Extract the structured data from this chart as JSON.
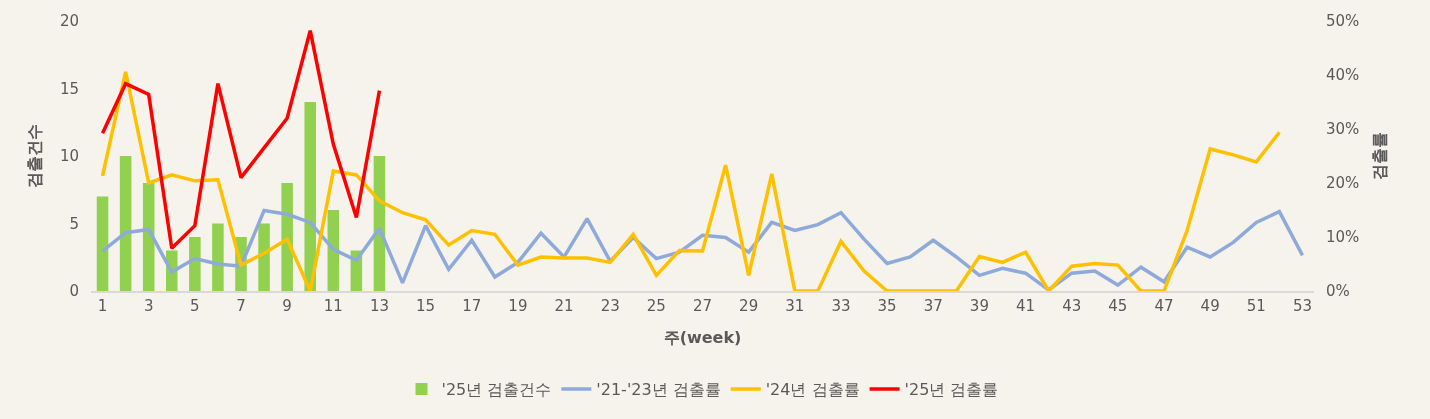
{
  "chart_data": {
    "type": "bar",
    "xlabel": "주(week)",
    "ylabel": "검출건수",
    "y2label": "검출률",
    "x": [
      1,
      2,
      3,
      4,
      5,
      6,
      7,
      8,
      9,
      10,
      11,
      12,
      13,
      14,
      15,
      16,
      17,
      18,
      19,
      20,
      21,
      22,
      23,
      24,
      25,
      26,
      27,
      28,
      29,
      30,
      31,
      32,
      33,
      34,
      35,
      36,
      37,
      38,
      39,
      40,
      41,
      42,
      43,
      44,
      45,
      46,
      47,
      48,
      49,
      50,
      51,
      52,
      53
    ],
    "xlim": [
      0.5,
      53.5
    ],
    "xticks": [
      1,
      3,
      5,
      7,
      9,
      11,
      13,
      15,
      17,
      19,
      21,
      23,
      25,
      27,
      29,
      31,
      33,
      35,
      37,
      39,
      41,
      43,
      45,
      47,
      49,
      51,
      53
    ],
    "ylim": [
      0,
      20
    ],
    "yticks": [
      0,
      5,
      10,
      15,
      20
    ],
    "y2lim": [
      0,
      50
    ],
    "y2ticks": [
      {
        "value": 0,
        "label": "0%"
      },
      {
        "value": 10,
        "label": "10%"
      },
      {
        "value": 20,
        "label": "20%"
      },
      {
        "value": 30,
        "label": "30%"
      },
      {
        "value": 40,
        "label": "40%"
      },
      {
        "value": 50,
        "label": "50%"
      }
    ],
    "grid": false,
    "legend": "bottom",
    "series": [
      {
        "name": "'25년 검출건수",
        "color": "#92d050",
        "x": [
          1,
          2,
          3,
          4,
          5,
          6,
          7,
          8,
          9,
          10,
          11,
          12,
          13
        ],
        "values": [
          7,
          10,
          8,
          3,
          4,
          5,
          4,
          5,
          8,
          14,
          6,
          3,
          10
        ]
      },
      {
        "name": "'21-'23년 검출률",
        "type": "line",
        "axis": "y2",
        "color": "#8eaadb",
        "values": [
          7.4,
          10.8,
          11.4,
          3.5,
          6,
          5,
          4.6,
          14.9,
          14.2,
          12.7,
          7.7,
          5.7,
          11.6,
          1.5,
          12.1,
          4,
          9.4,
          2.6,
          5.3,
          10.7,
          6.3,
          13.4,
          5.5,
          9.9,
          6,
          7.2,
          10.3,
          9.9,
          7.2,
          12.7,
          11.2,
          12.3,
          14.5,
          9.6,
          5.1,
          6.3,
          9.4,
          6.3,
          2.9,
          4.2,
          3.3,
          0.2,
          3.3,
          3.7,
          1.1,
          4.4,
          1.7,
          8.1,
          6.3,
          9,
          12.7,
          14.7,
          6.6
        ]
      },
      {
        "name": "'24년 검출률",
        "type": "line",
        "axis": "y2",
        "color": "#ffc000",
        "x": [
          1,
          2,
          3,
          4,
          5,
          6,
          7,
          8,
          9,
          10,
          11,
          12,
          13,
          14,
          15,
          16,
          17,
          18,
          19,
          20,
          21,
          22,
          23,
          24,
          25,
          26,
          27,
          28,
          29,
          30,
          31,
          32,
          33,
          34,
          35,
          36,
          37,
          38,
          39,
          40,
          41,
          42,
          43,
          44,
          45,
          46,
          47,
          48,
          49,
          50,
          51,
          52
        ],
        "values": [
          21.3,
          40.6,
          20,
          21.5,
          20.4,
          20.6,
          4.8,
          7,
          9.6,
          0,
          22.2,
          21.5,
          16.7,
          14.5,
          13.2,
          8.5,
          11.2,
          10.5,
          4.8,
          6.3,
          6.1,
          6.1,
          5.3,
          10.5,
          2.9,
          7.5,
          7.4,
          23.3,
          2.9,
          21.7,
          0,
          0,
          9.2,
          3.7,
          0,
          0,
          0,
          0,
          6.4,
          5.3,
          7.2,
          0,
          4.6,
          5.1,
          4.8,
          0,
          0,
          11.2,
          26.3,
          25.2,
          23.9,
          29.4
        ]
      },
      {
        "name": "'25년 검출률",
        "type": "line",
        "axis": "y2",
        "color": "#ff0000",
        "x": [
          1,
          2,
          3,
          4,
          5,
          6,
          7,
          8,
          9,
          10,
          11,
          12,
          13
        ],
        "values": [
          29.2,
          38.4,
          36.4,
          7.9,
          12.1,
          38.4,
          21,
          26.5,
          32,
          48.2,
          27.2,
          13.6,
          37.1
        ]
      }
    ]
  }
}
